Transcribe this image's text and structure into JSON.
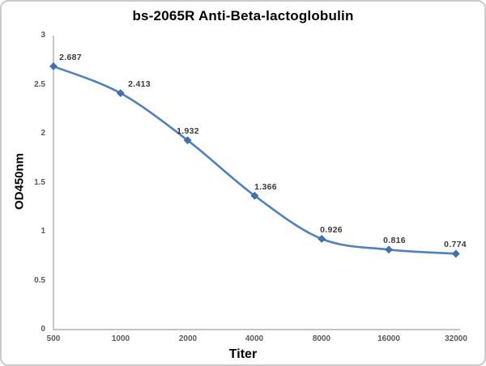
{
  "window": {
    "background": "#ffffff",
    "border_color": "#cbcbcb"
  },
  "chart_data": {
    "type": "line",
    "title": "bs-2065R Anti-Beta-lactoglobulin",
    "xlabel": "Titer",
    "ylabel": "OD450nm",
    "categories": [
      "500",
      "1000",
      "2000",
      "4000",
      "8000",
      "16000",
      "32000"
    ],
    "values": [
      2.687,
      2.413,
      1.932,
      1.366,
      0.926,
      0.816,
      0.774
    ],
    "point_labels": [
      "2.687",
      "2.413",
      "1.932",
      "1.366",
      "0.926",
      "0.816",
      "0.774"
    ],
    "yticks": [
      0,
      0.5,
      1,
      1.5,
      2,
      2.5,
      3
    ],
    "ytick_labels": [
      "0",
      "0.5",
      "1",
      "1.5",
      "2",
      "2.5",
      "3"
    ],
    "ylim": [
      0,
      3
    ],
    "grid": false,
    "legend": "none",
    "smooth": true,
    "marker": "diamond",
    "colors": {
      "line": "#4f81bd",
      "marker_fill": "#4373ad",
      "marker_edge": "#3a6399",
      "y_axis_line": "#a6a6a6",
      "x_axis_line": "#c3c3c3",
      "tick_text": "#595959",
      "point_label_text": "#3b3b3b",
      "title_text": "#000000"
    }
  }
}
